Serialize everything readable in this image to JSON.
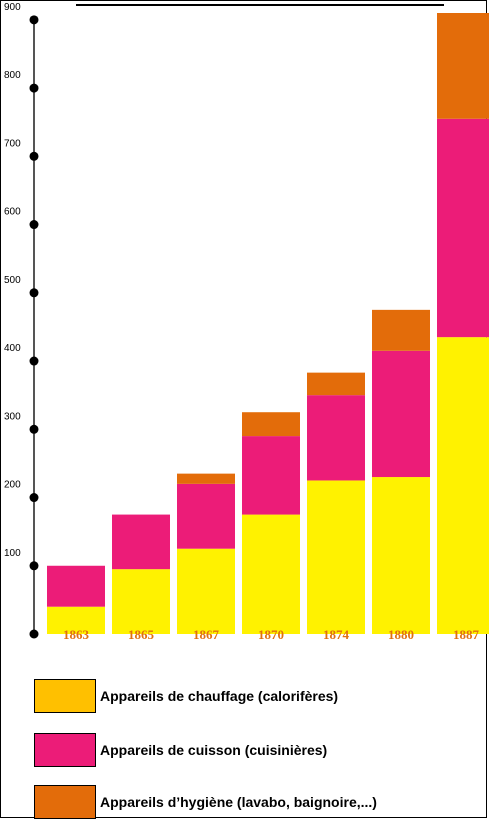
{
  "chart_data": {
    "type": "bar",
    "stacked": true,
    "categories": [
      "1863",
      "1865",
      "1867",
      "1870",
      "1874",
      "1880",
      "1887"
    ],
    "series": [
      {
        "name": "Appareils de chauffage (calorifères)",
        "color": "#fff200",
        "values": [
          40,
          95,
          125,
          175,
          225,
          230,
          435
        ]
      },
      {
        "name": "Appareils de cuisson (cuisinières)",
        "color": "#ec1c78",
        "values": [
          60,
          80,
          95,
          115,
          125,
          185,
          320
        ]
      },
      {
        "name": "Appareils d’hygiène (lavabo, baignoire,...)",
        "color": "#e36c0a",
        "values": [
          0,
          0,
          15,
          35,
          33,
          60,
          155
        ]
      }
    ],
    "yticks": [
      "100",
      "200",
      "300",
      "400",
      "500",
      "600",
      "700",
      "800",
      "900"
    ],
    "ylim": [
      0,
      910
    ],
    "legend_position": "bottom",
    "xlabel": "",
    "ylabel": ""
  },
  "legend": [
    {
      "label": "Appareils de chauffage (calorifères)",
      "color": "#ffc000"
    },
    {
      "label": "Appareils de cuisson (cuisinières)",
      "color": "#ec1c78"
    },
    {
      "label": "Appareils d’hygiène (lavabo, baignoire,...)",
      "color": "#e36c0a"
    }
  ]
}
